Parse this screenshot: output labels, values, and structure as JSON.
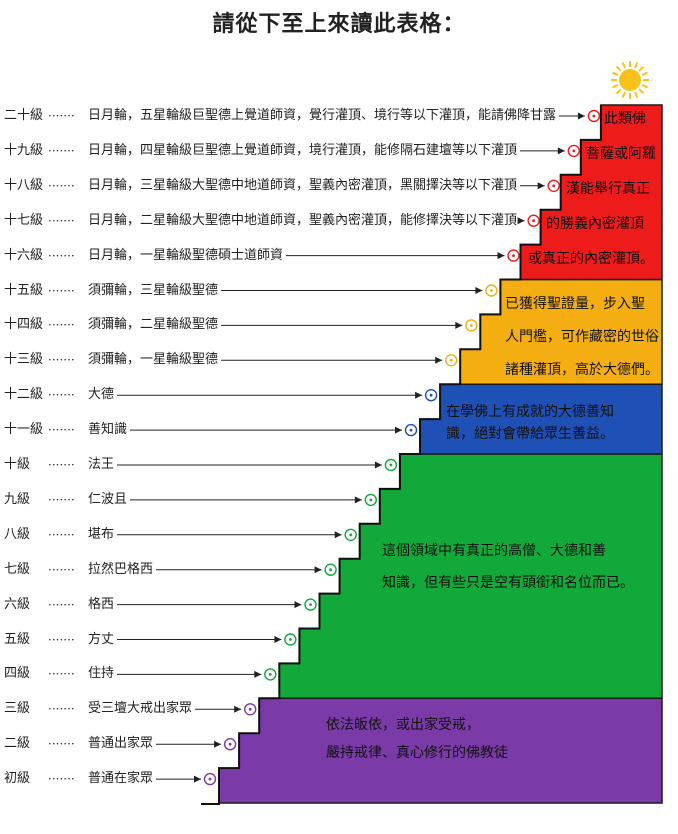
{
  "title": "請從下至上來讀此表格：",
  "colors": {
    "purple": "#7a3aa8",
    "green": "#12a83a",
    "blue": "#1f50b5",
    "orange": "#f5ae11",
    "red": "#ee1b1b",
    "sun": "#f8c21a"
  },
  "levels": [
    {
      "level": "初級",
      "desc": "普通在家眾",
      "tier": "purple"
    },
    {
      "level": "二級",
      "desc": "普通出家眾",
      "tier": "purple"
    },
    {
      "level": "三級",
      "desc": "受三壇大戒出家眾",
      "tier": "purple"
    },
    {
      "level": "四級",
      "desc": "住持",
      "tier": "green"
    },
    {
      "level": "五級",
      "desc": "方丈",
      "tier": "green"
    },
    {
      "level": "六級",
      "desc": "格西",
      "tier": "green"
    },
    {
      "level": "七級",
      "desc": "拉然巴格西",
      "tier": "green"
    },
    {
      "level": "八級",
      "desc": "堪布",
      "tier": "green"
    },
    {
      "level": "九級",
      "desc": "仁波且",
      "tier": "green"
    },
    {
      "level": "十級",
      "desc": "法王",
      "tier": "green"
    },
    {
      "level": "十一級",
      "desc": "善知識",
      "tier": "blue"
    },
    {
      "level": "十二級",
      "desc": "大德",
      "tier": "blue"
    },
    {
      "level": "十三級",
      "desc": "須彌輪，一星輪級聖德",
      "tier": "orange"
    },
    {
      "level": "十四級",
      "desc": "須彌輪，二星輪級聖德",
      "tier": "orange"
    },
    {
      "level": "十五級",
      "desc": "須彌輪，三星輪級聖德",
      "tier": "orange"
    },
    {
      "level": "十六級",
      "desc": "日月輪，一星輪級聖德碩士道師資",
      "tier": "red"
    },
    {
      "level": "十七級",
      "desc": "日月輪，二星輪級大聖德中地道師資，聖義內密灌頂，能修擇決等以下灌頂",
      "tier": "red"
    },
    {
      "level": "十八級",
      "desc": "日月輪，三星輪級大聖德中地道師資，聖義內密灌頂，黑關擇決等以下灌頂",
      "tier": "red"
    },
    {
      "level": "十九級",
      "desc": "日月輪，四星輪級巨聖德上覺道師資，境行灌頂，能修隔石建壇等以下灌頂",
      "tier": "red"
    },
    {
      "level": "二十級",
      "desc": "日月輪，五星輪級巨聖德上覺道師資，覺行灌頂、境行等以下灌頂，能請佛降甘露",
      "tier": "red"
    }
  ],
  "notes": {
    "purple": [
      "依法皈依，或出家受戒，",
      "嚴持戒律、真心修行的佛教徒"
    ],
    "green": [
      "這個領域中有真正的高僧、大德和善",
      "知識，但有些只是空有頭銜和名位而已。"
    ],
    "blue": [
      "在學佛上有成就的大德善知",
      "識，絕對會帶給眾生善益。"
    ],
    "orange": [
      "已獲得聖證量，步入聖",
      "人門檻，可作藏密的世俗",
      "諸種灌頂，高於大德們。"
    ],
    "red": [
      "此類佛",
      "菩薩或阿羅",
      "漢能舉行真正",
      "的勝義內密灌頂",
      "或真正的內密灌頂。"
    ]
  }
}
